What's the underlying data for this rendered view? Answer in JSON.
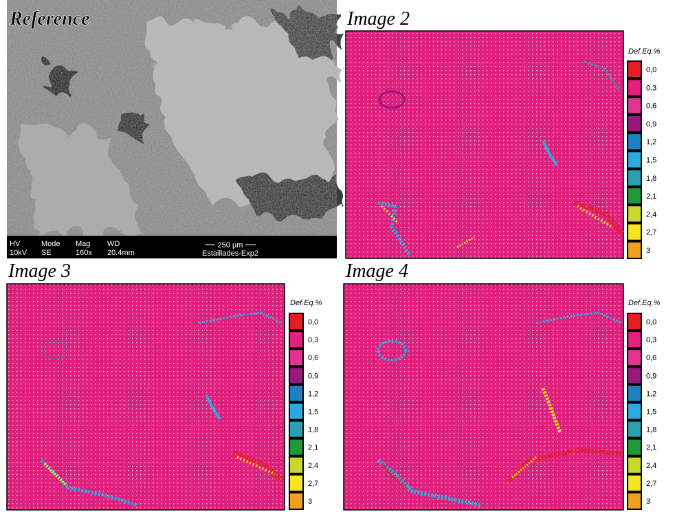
{
  "panels": [
    {
      "title": "Reference"
    },
    {
      "title": "Image 2"
    },
    {
      "title": "Image 3"
    },
    {
      "title": "Image 4"
    }
  ],
  "sem_info": {
    "labels": [
      "HV",
      "Mode",
      "Mag",
      "WD"
    ],
    "values": [
      "10kV",
      "SE",
      "160x",
      "20.4mm"
    ],
    "scale_bar": "250 µm",
    "sample": "Estaillades-Exp2"
  },
  "legend": {
    "title": "Def.Eq.%",
    "items": [
      {
        "label": "0,0",
        "color": "#e31e24"
      },
      {
        "label": "0,3",
        "color": "#e2207e"
      },
      {
        "label": "0,6",
        "color": "#e3338f"
      },
      {
        "label": "0,9",
        "color": "#98197c"
      },
      {
        "label": "1,2",
        "color": "#1f7fc3"
      },
      {
        "label": "1,5",
        "color": "#2ba9e1"
      },
      {
        "label": "1,8",
        "color": "#2a9fb2"
      },
      {
        "label": "2,1",
        "color": "#1e9a3d"
      },
      {
        "label": "2,4",
        "color": "#c9d92b"
      },
      {
        "label": "2,7",
        "color": "#f6e521"
      },
      {
        "label": "3",
        "color": "#f0a01f"
      }
    ]
  }
}
